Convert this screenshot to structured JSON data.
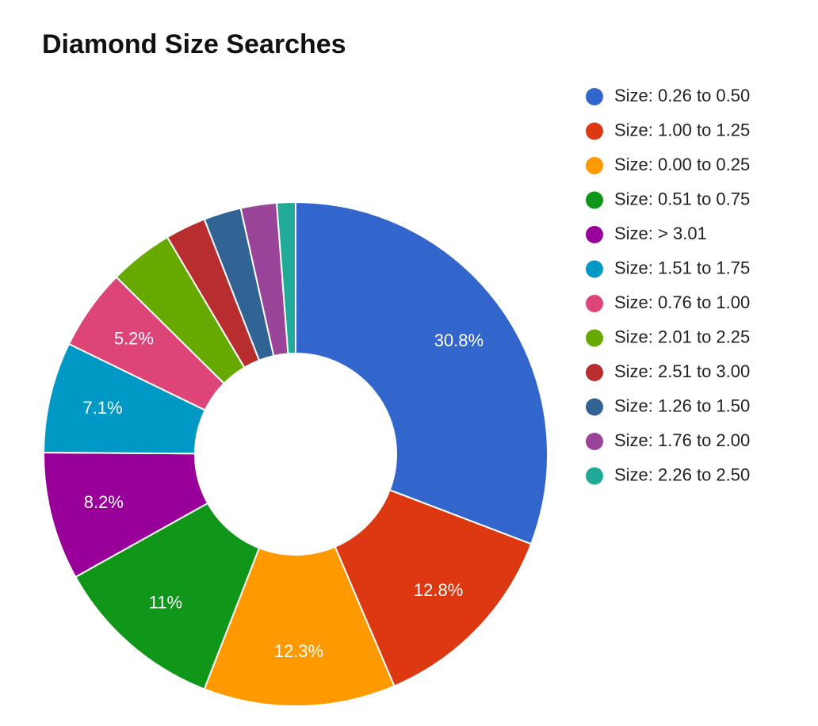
{
  "chart_data": {
    "type": "donut",
    "title": "Diamond Size Searches",
    "categories": [
      "Size: 0.26 to 0.50",
      "Size: 1.00 to 1.25",
      "Size: 0.00 to 0.25",
      "Size: 0.51 to 0.75",
      "Size: > 3.01",
      "Size: 1.51 to 1.75",
      "Size: 0.76 to 1.00",
      "Size: 2.01 to 2.25",
      "Size: 2.51 to 3.00",
      "Size: 1.26 to 1.50",
      "Size: 1.76 to 2.00",
      "Size: 2.26 to 2.50"
    ],
    "values": [
      30.8,
      12.8,
      12.3,
      11,
      8.2,
      7.1,
      5.2,
      4.1,
      2.6,
      2.4,
      2.3,
      1.2
    ],
    "value_labels": [
      "30.8%",
      "12.8%",
      "12.3%",
      "11%",
      "8.2%",
      "7.1%",
      "5.2%",
      null,
      null,
      null,
      null,
      null
    ],
    "colors": [
      "#3366cc",
      "#dc3912",
      "#ff9900",
      "#109618",
      "#990099",
      "#0099c6",
      "#dd4477",
      "#66aa00",
      "#b82e2e",
      "#316395",
      "#994499",
      "#22aa99"
    ],
    "legend": "right"
  }
}
